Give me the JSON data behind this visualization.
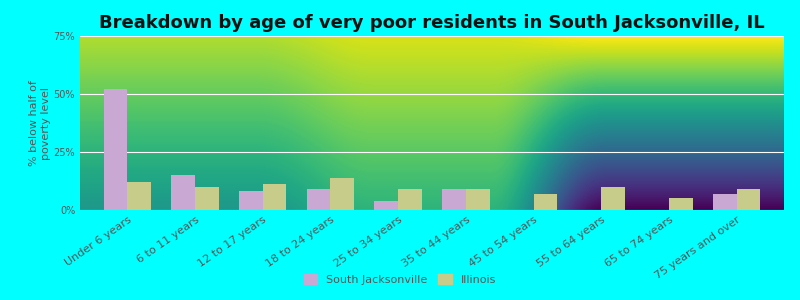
{
  "title": "Breakdown by age of very poor residents in South Jacksonville, IL",
  "ylabel": "% below half of\npoverty level",
  "categories": [
    "Under 6 years",
    "6 to 11 years",
    "12 to 17 years",
    "18 to 24 years",
    "25 to 34 years",
    "35 to 44 years",
    "45 to 54 years",
    "55 to 64 years",
    "65 to 74 years",
    "75 years and over"
  ],
  "south_jacksonville": [
    52,
    15,
    8,
    9,
    4,
    9,
    0,
    0,
    0,
    7
  ],
  "illinois": [
    12,
    10,
    11,
    14,
    9,
    9,
    7,
    10,
    5,
    9
  ],
  "sj_color": "#c9a8d4",
  "il_color": "#c8cc8a",
  "ylim": [
    0,
    75
  ],
  "yticks": [
    0,
    25,
    50,
    75
  ],
  "ytick_labels": [
    "0%",
    "25%",
    "50%",
    "75%"
  ],
  "background_color": "#00ffff",
  "title_fontsize": 13,
  "axis_label_fontsize": 8,
  "tick_fontsize": 7,
  "legend_label_sj": "South Jacksonville",
  "legend_label_il": "Illinois",
  "bar_width": 0.35
}
